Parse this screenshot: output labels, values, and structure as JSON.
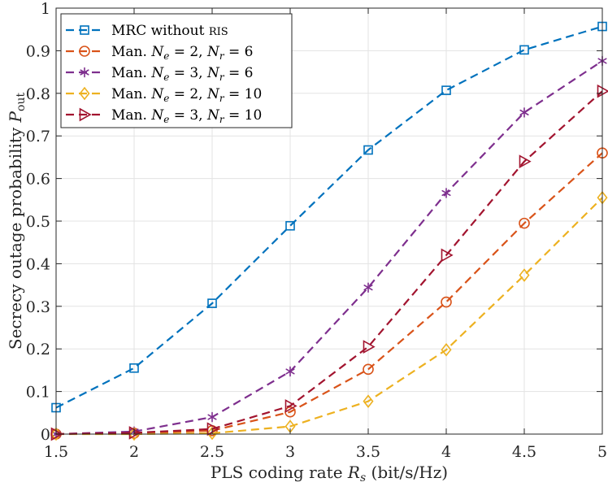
{
  "chart_data": {
    "type": "line",
    "xlabel_prefix": "PLS coding rate ",
    "xlabel_var": "R",
    "xlabel_sub": "s",
    "xlabel_suffix": " (bit/s/Hz)",
    "ylabel_prefix": "Secrecy outage probability ",
    "ylabel_var": "P",
    "ylabel_sub": "out",
    "xlim": [
      1.5,
      5
    ],
    "ylim": [
      0,
      1
    ],
    "xticks": [
      "1.5",
      "2",
      "2.5",
      "3",
      "3.5",
      "4",
      "4.5",
      "5"
    ],
    "yticks": [
      "0",
      "0.1",
      "0.2",
      "0.3",
      "0.4",
      "0.5",
      "0.6",
      "0.7",
      "0.8",
      "0.9",
      "1"
    ],
    "grid": true,
    "legend_position": "top-left",
    "x": [
      1.5,
      2,
      2.5,
      3,
      3.5,
      4,
      4.5,
      5
    ],
    "series": [
      {
        "name": "MRC without RIS",
        "legend": [
          "MRC without ",
          "RIS"
        ],
        "color": "#0072BD",
        "marker": "square",
        "values": [
          0.062,
          0.155,
          0.307,
          0.489,
          0.667,
          0.807,
          0.902,
          0.957
        ]
      },
      {
        "name": "Man. Ne = 2, Nr = 6",
        "legend": [
          "Man. ",
          "N",
          "e",
          " = 2, ",
          "N",
          "r",
          " = 6"
        ],
        "color": "#D95319",
        "marker": "circle",
        "values": [
          0.0,
          0.002,
          0.008,
          0.052,
          0.152,
          0.31,
          0.495,
          0.66
        ]
      },
      {
        "name": "Man. Ne = 3, Nr = 6",
        "legend": [
          "Man. ",
          "N",
          "e",
          " = 3, ",
          "N",
          "r",
          " = 6"
        ],
        "color": "#7E2F8E",
        "marker": "star",
        "values": [
          0.0,
          0.006,
          0.04,
          0.147,
          0.344,
          0.566,
          0.755,
          0.876
        ]
      },
      {
        "name": "Man. Ne = 2, Nr = 10",
        "legend": [
          "Man. ",
          "N",
          "e",
          " = 2, ",
          "N",
          "r",
          " = 10"
        ],
        "color": "#EDB120",
        "marker": "diamond",
        "values": [
          0.0,
          0.0,
          0.002,
          0.018,
          0.077,
          0.198,
          0.373,
          0.555
        ]
      },
      {
        "name": "Man. Ne = 3, Nr = 10",
        "legend": [
          "Man. ",
          "N",
          "e",
          " = 3, ",
          "N",
          "r",
          " = 10"
        ],
        "color": "#A2142F",
        "marker": "triangle-right",
        "values": [
          0.0,
          0.003,
          0.012,
          0.066,
          0.205,
          0.42,
          0.64,
          0.805
        ]
      }
    ]
  }
}
